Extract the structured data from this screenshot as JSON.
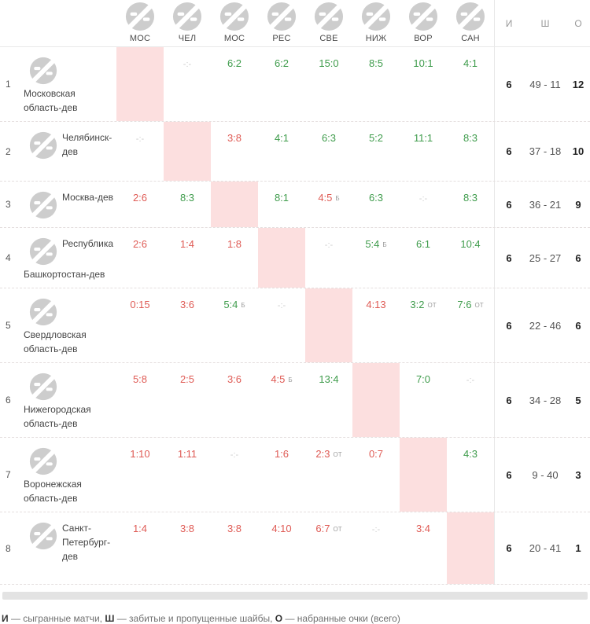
{
  "header": {
    "columns": [
      {
        "abbr": "МОС"
      },
      {
        "abbr": "ЧЕЛ"
      },
      {
        "abbr": "МОС"
      },
      {
        "abbr": "РЕС"
      },
      {
        "abbr": "СВЕ"
      },
      {
        "abbr": "НИЖ"
      },
      {
        "abbr": "ВОР"
      },
      {
        "abbr": "САН"
      }
    ],
    "totals": [
      "И",
      "Ш",
      "О"
    ]
  },
  "labels": {
    "not_played": "-:-"
  },
  "colors": {
    "win": "#3f9c4c",
    "loss": "#df5b55",
    "self_cell": "#fcdfdf",
    "not_played": "#cccccc"
  },
  "rows": [
    {
      "num": "1",
      "name": "Московская область-дев",
      "games": "6",
      "goals": "49 - 11",
      "points": "12",
      "cells": [
        {
          "self": true
        },
        {
          "np": true
        },
        {
          "s": "6:2",
          "r": "w"
        },
        {
          "s": "6:2",
          "r": "w"
        },
        {
          "s": "15:0",
          "r": "w"
        },
        {
          "s": "8:5",
          "r": "w"
        },
        {
          "s": "10:1",
          "r": "w"
        },
        {
          "s": "4:1",
          "r": "w"
        }
      ]
    },
    {
      "num": "2",
      "name": "Челябинск-дев",
      "games": "6",
      "goals": "37 - 18",
      "points": "10",
      "cells": [
        {
          "np": true
        },
        {
          "self": true
        },
        {
          "s": "3:8",
          "r": "l"
        },
        {
          "s": "4:1",
          "r": "w"
        },
        {
          "s": "6:3",
          "r": "w"
        },
        {
          "s": "5:2",
          "r": "w"
        },
        {
          "s": "11:1",
          "r": "w"
        },
        {
          "s": "8:3",
          "r": "w"
        }
      ]
    },
    {
      "num": "3",
      "name": "Москва-дев",
      "games": "6",
      "goals": "36 - 21",
      "points": "9",
      "cells": [
        {
          "s": "2:6",
          "r": "l"
        },
        {
          "s": "8:3",
          "r": "w"
        },
        {
          "self": true
        },
        {
          "s": "8:1",
          "r": "w"
        },
        {
          "s": "4:5",
          "r": "l",
          "m": "Б"
        },
        {
          "s": "6:3",
          "r": "w"
        },
        {
          "np": true
        },
        {
          "s": "8:3",
          "r": "w"
        }
      ]
    },
    {
      "num": "4",
      "name": "Республика Башкортостан-дев",
      "games": "6",
      "goals": "25 - 27",
      "points": "6",
      "cells": [
        {
          "s": "2:6",
          "r": "l"
        },
        {
          "s": "1:4",
          "r": "l"
        },
        {
          "s": "1:8",
          "r": "l"
        },
        {
          "self": true
        },
        {
          "np": true
        },
        {
          "s": "5:4",
          "r": "w",
          "m": "Б"
        },
        {
          "s": "6:1",
          "r": "w"
        },
        {
          "s": "10:4",
          "r": "w"
        }
      ]
    },
    {
      "num": "5",
      "name": "Свердловская область-дев",
      "games": "6",
      "goals": "22 - 46",
      "points": "6",
      "cells": [
        {
          "s": "0:15",
          "r": "l"
        },
        {
          "s": "3:6",
          "r": "l"
        },
        {
          "s": "5:4",
          "r": "w",
          "m": "Б"
        },
        {
          "np": true
        },
        {
          "self": true
        },
        {
          "s": "4:13",
          "r": "l"
        },
        {
          "s": "3:2",
          "r": "w",
          "m": "ОТ"
        },
        {
          "s": "7:6",
          "r": "w",
          "m": "ОТ"
        }
      ]
    },
    {
      "num": "6",
      "name": "Нижегородская область-дев",
      "games": "6",
      "goals": "34 - 28",
      "points": "5",
      "cells": [
        {
          "s": "5:8",
          "r": "l"
        },
        {
          "s": "2:5",
          "r": "l"
        },
        {
          "s": "3:6",
          "r": "l"
        },
        {
          "s": "4:5",
          "r": "l",
          "m": "Б"
        },
        {
          "s": "13:4",
          "r": "w"
        },
        {
          "self": true
        },
        {
          "s": "7:0",
          "r": "w"
        },
        {
          "np": true
        }
      ]
    },
    {
      "num": "7",
      "name": "Воронежская область-дев",
      "games": "6",
      "goals": "9 - 40",
      "points": "3",
      "cells": [
        {
          "s": "1:10",
          "r": "l"
        },
        {
          "s": "1:11",
          "r": "l"
        },
        {
          "np": true
        },
        {
          "s": "1:6",
          "r": "l"
        },
        {
          "s": "2:3",
          "r": "l",
          "m": "ОТ"
        },
        {
          "s": "0:7",
          "r": "l"
        },
        {
          "self": true
        },
        {
          "s": "4:3",
          "r": "w"
        }
      ]
    },
    {
      "num": "8",
      "name": "Санкт-Петербург-дев",
      "games": "6",
      "goals": "20 - 41",
      "points": "1",
      "cells": [
        {
          "s": "1:4",
          "r": "l"
        },
        {
          "s": "3:8",
          "r": "l"
        },
        {
          "s": "3:8",
          "r": "l"
        },
        {
          "s": "4:10",
          "r": "l"
        },
        {
          "s": "6:7",
          "r": "l",
          "m": "ОТ"
        },
        {
          "np": true
        },
        {
          "s": "3:4",
          "r": "l"
        },
        {
          "self": true
        }
      ]
    }
  ],
  "legend": {
    "i_term": "И",
    "i_text": " — сыгранные матчи, ",
    "sh_term": "Ш",
    "sh_text": " — забитые и пропущенные шайбы, ",
    "o_term": "О",
    "o_text": " — набранные очки (всего)"
  }
}
